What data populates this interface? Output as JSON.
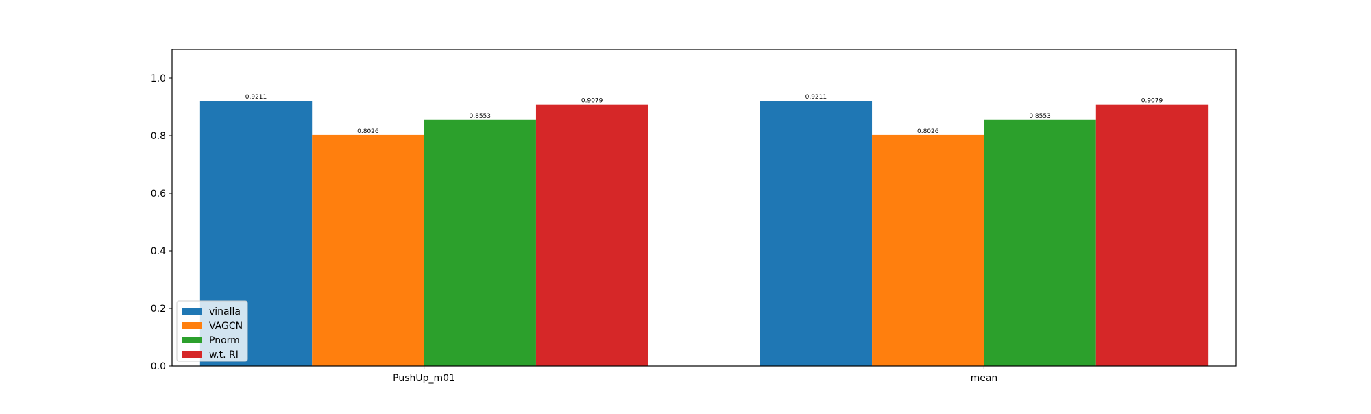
{
  "chart_data": {
    "type": "bar",
    "categories": [
      "PushUp_m01",
      "mean"
    ],
    "series": [
      {
        "name": "vinalla",
        "values": [
          0.9211,
          0.9211
        ],
        "color": "#1f77b4"
      },
      {
        "name": "VAGCN",
        "values": [
          0.8026,
          0.8026
        ],
        "color": "#ff7f0e"
      },
      {
        "name": "Pnorm",
        "values": [
          0.8553,
          0.8553
        ],
        "color": "#2ca02c"
      },
      {
        "name": "w.t. RI",
        "values": [
          0.9079,
          0.9079
        ],
        "color": "#d62728"
      }
    ],
    "data_labels": [
      [
        "0.9211",
        "0.8026",
        "0.8553",
        "0.9079"
      ],
      [
        "0.9211",
        "0.8026",
        "0.8553",
        "0.9079"
      ]
    ],
    "yticks": [
      0.0,
      0.2,
      0.4,
      0.6,
      0.8,
      1.0
    ],
    "ytick_labels": [
      "0.0",
      "0.2",
      "0.4",
      "0.6",
      "0.8",
      "1.0"
    ],
    "ylim": [
      0,
      1.1
    ],
    "title": "",
    "xlabel": "",
    "ylabel": "",
    "grid": false,
    "legend_position": "lower-left"
  }
}
